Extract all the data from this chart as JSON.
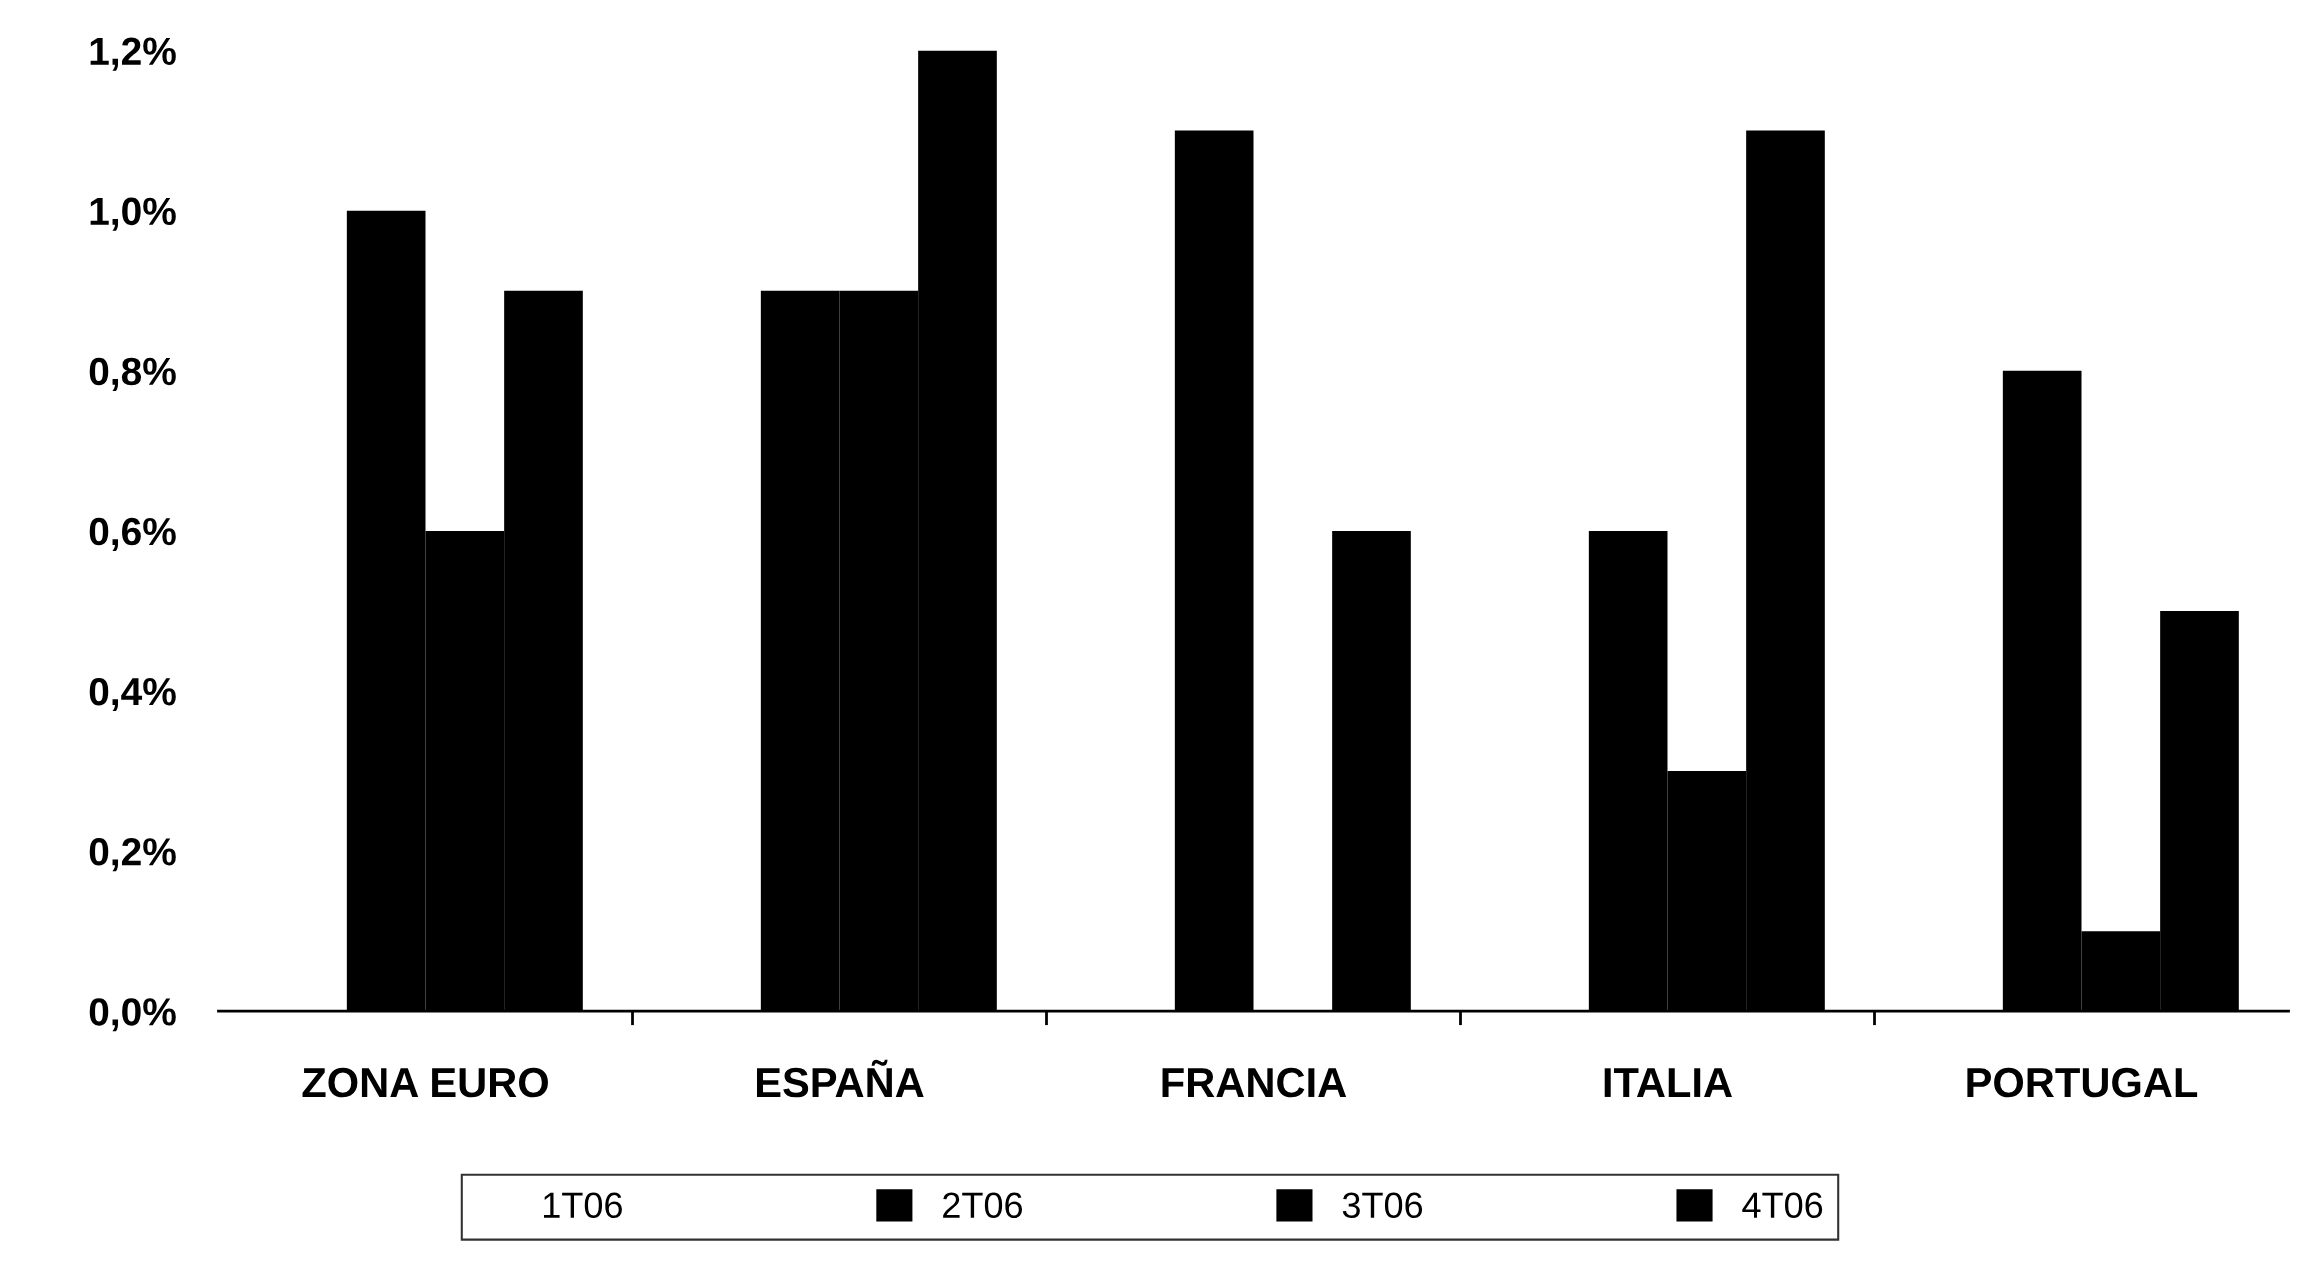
{
  "chart_data": {
    "type": "bar",
    "categories": [
      "ZONA EURO",
      "ESPAÑA",
      "FRANCIA",
      "ITALIA",
      "PORTUGAL"
    ],
    "series": [
      {
        "name": "1T06",
        "values": [
          null,
          null,
          null,
          null,
          null
        ]
      },
      {
        "name": "2T06",
        "color": "#000000",
        "values": [
          1.0,
          0.9,
          1.1,
          0.6,
          0.8
        ]
      },
      {
        "name": "3T06",
        "color": "#000000",
        "values": [
          0.6,
          0.9,
          0.0,
          0.3,
          0.1
        ]
      },
      {
        "name": "4T06",
        "color": "#000000",
        "values": [
          0.9,
          1.2,
          0.6,
          1.1,
          0.5
        ]
      }
    ],
    "ylim": [
      0,
      1.2
    ],
    "yticks": [
      {
        "value": 0,
        "label": "0,0%"
      },
      {
        "value": 0.2,
        "label": "0,2%"
      },
      {
        "value": 0.4,
        "label": "0,4%"
      },
      {
        "value": 0.6,
        "label": "0,6%"
      },
      {
        "value": 0.8,
        "label": "0,8%"
      },
      {
        "value": 1.0,
        "label": "1,0%"
      },
      {
        "value": 1.2,
        "label": "1,2%"
      }
    ],
    "grid": false,
    "legend": "bottom"
  }
}
